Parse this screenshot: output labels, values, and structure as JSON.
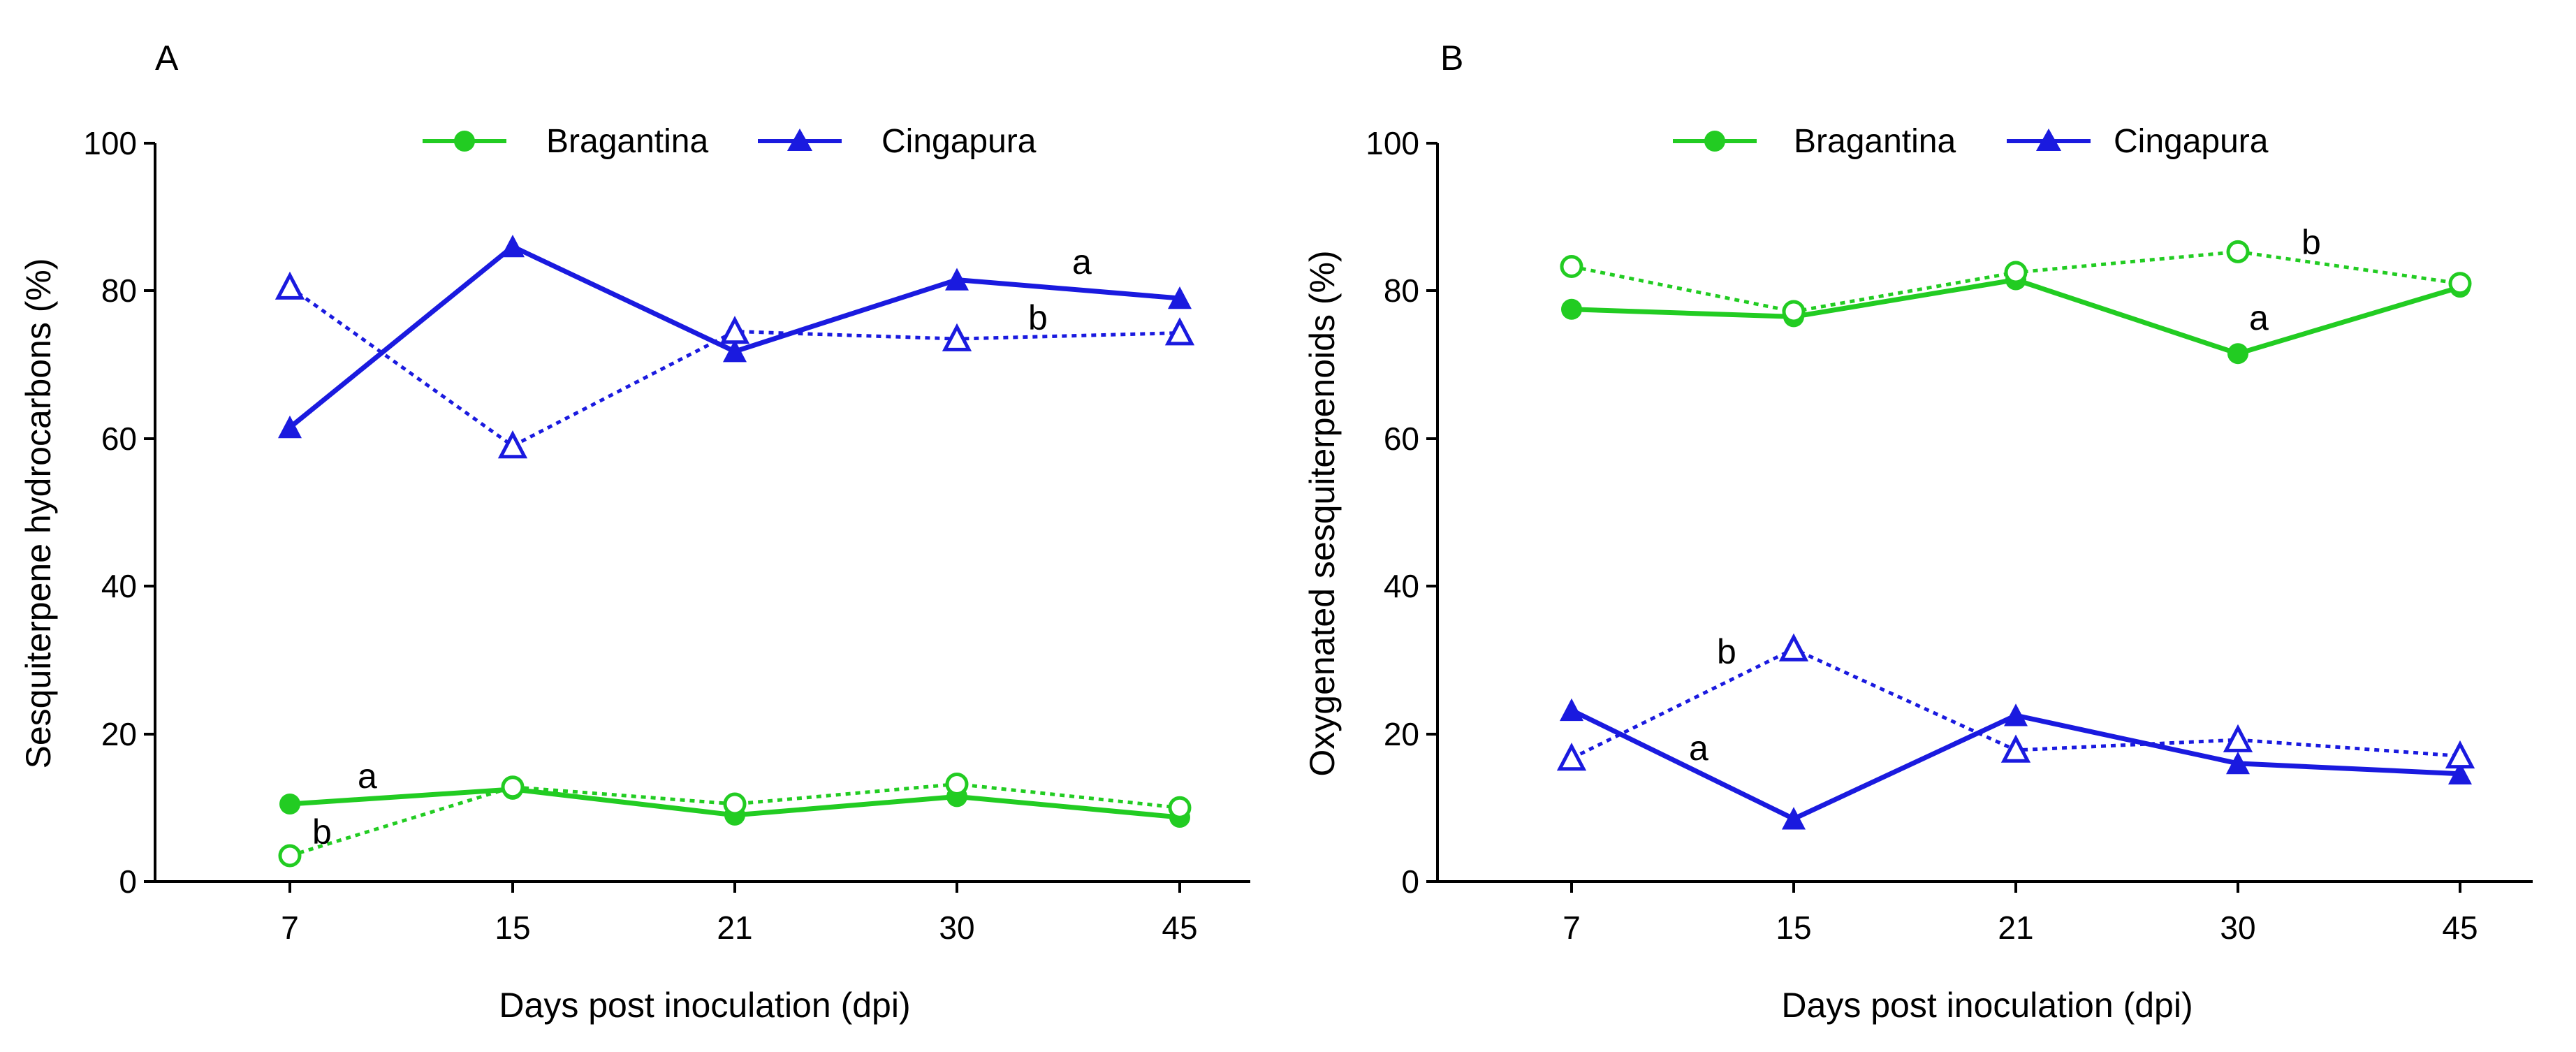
{
  "colors": {
    "bragantina": "#22cc22",
    "cingapura": "#1a1adf",
    "axis": "#000000"
  },
  "chart_data": [
    {
      "panel_label": "A",
      "type": "line",
      "xlabel": "Days post inoculation (dpi)",
      "ylabel": "Sesquiterpene hydrocarbons (%)",
      "categories": [
        "7",
        "15",
        "21",
        "30",
        "45"
      ],
      "ylim": [
        0,
        100
      ],
      "yticks": [
        "0",
        "20",
        "40",
        "60",
        "80",
        "100"
      ],
      "legend": {
        "position": "top-center",
        "entries": [
          "Bragantina",
          "Cingapura"
        ]
      },
      "series": [
        {
          "name": "Bragantina",
          "style": "solid",
          "marker": "circle-filled",
          "values": [
            10.5,
            12.5,
            9,
            11.5,
            8.7
          ]
        },
        {
          "name": "Bragantina",
          "style": "dotted",
          "marker": "circle-open",
          "values": [
            3.5,
            12.8,
            10.5,
            13.2,
            10
          ]
        },
        {
          "name": "Cingapura",
          "style": "solid",
          "marker": "triangle-filled",
          "values": [
            61.5,
            86,
            71.8,
            81.5,
            79
          ]
        },
        {
          "name": "Cingapura",
          "style": "dotted",
          "marker": "triangle-open",
          "values": [
            80.5,
            59,
            74.5,
            73.5,
            74.3
          ]
        }
      ],
      "annotations": [
        {
          "text": "a",
          "near": "Cingapura solid, 30–45 dpi"
        },
        {
          "text": "b",
          "near": "Cingapura dotted, 30–45 dpi"
        },
        {
          "text": "a",
          "near": "Bragantina solid, 7 dpi"
        },
        {
          "text": "b",
          "near": "Bragantina dotted, 7 dpi"
        }
      ]
    },
    {
      "panel_label": "B",
      "type": "line",
      "xlabel": "Days post inoculation (dpi)",
      "ylabel": "Oxygenated sesquiterpenoids (%)",
      "categories": [
        "7",
        "15",
        "21",
        "30",
        "45"
      ],
      "ylim": [
        0,
        100
      ],
      "yticks": [
        "0",
        "20",
        "40",
        "60",
        "80",
        "100"
      ],
      "legend": {
        "position": "top-center",
        "entries": [
          "Bragantina",
          "Cingapura"
        ]
      },
      "series": [
        {
          "name": "Bragantina",
          "style": "solid",
          "marker": "circle-filled",
          "values": [
            77.5,
            76.5,
            81.5,
            71.5,
            80.5
          ]
        },
        {
          "name": "Bragantina",
          "style": "dotted",
          "marker": "circle-open",
          "values": [
            83.3,
            77.2,
            82.5,
            85.3,
            81
          ]
        },
        {
          "name": "Cingapura",
          "style": "solid",
          "marker": "triangle-filled",
          "values": [
            23.2,
            8.5,
            22.5,
            16,
            14.6
          ]
        },
        {
          "name": "Cingapura",
          "style": "dotted",
          "marker": "triangle-open",
          "values": [
            16.7,
            31.5,
            17.8,
            19.2,
            17
          ]
        }
      ],
      "annotations": [
        {
          "text": "b",
          "near": "Bragantina dotted, 30–45 dpi"
        },
        {
          "text": "a",
          "near": "Bragantina solid, 30 dpi"
        },
        {
          "text": "b",
          "near": "Cingapura dotted, 15 dpi"
        },
        {
          "text": "a",
          "near": "Cingapura solid, 7–15 dpi"
        }
      ]
    }
  ]
}
